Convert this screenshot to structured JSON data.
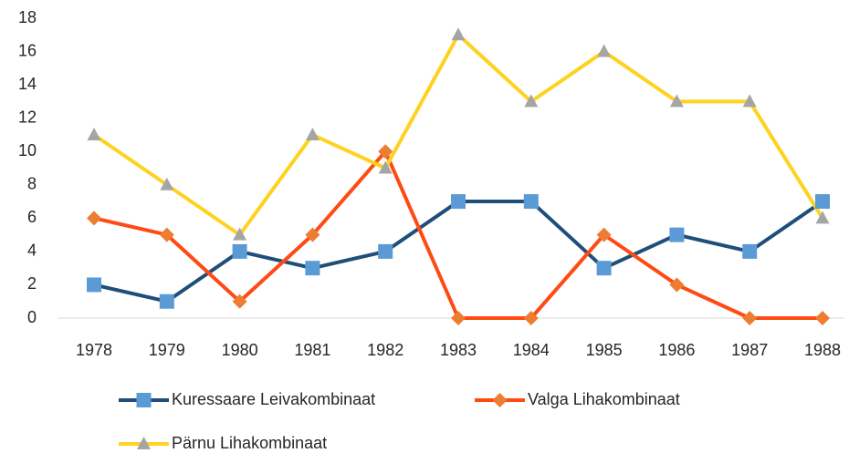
{
  "chart_data": {
    "type": "line",
    "categories": [
      "1978",
      "1979",
      "1980",
      "1981",
      "1982",
      "1983",
      "1984",
      "1985",
      "1986",
      "1987",
      "1988"
    ],
    "series": [
      {
        "name": "Kuressaare Leivakombinaat",
        "color": "#1f4e79",
        "marker": "square",
        "marker_color": "#5b9bd5",
        "values": [
          2,
          1,
          4,
          3,
          4,
          7,
          7,
          3,
          5,
          4,
          7
        ]
      },
      {
        "name": "Valga Lihakombinaat",
        "color": "#ff4a14",
        "marker": "diamond",
        "marker_color": "#ed7d31",
        "values": [
          6,
          5,
          1,
          5,
          10,
          0,
          0,
          5,
          2,
          0,
          0
        ]
      },
      {
        "name": "Pärnu Lihakombinaat",
        "color": "#ffd21f",
        "marker": "triangle",
        "marker_color": "#a5a5a5",
        "values": [
          11,
          8,
          5,
          11,
          9,
          17,
          13,
          16,
          13,
          13,
          6
        ]
      }
    ],
    "ylim": [
      0,
      18
    ],
    "yticks": [
      0,
      2,
      4,
      6,
      8,
      10,
      12,
      14,
      16,
      18
    ],
    "grid": false,
    "legend": "bottom"
  }
}
